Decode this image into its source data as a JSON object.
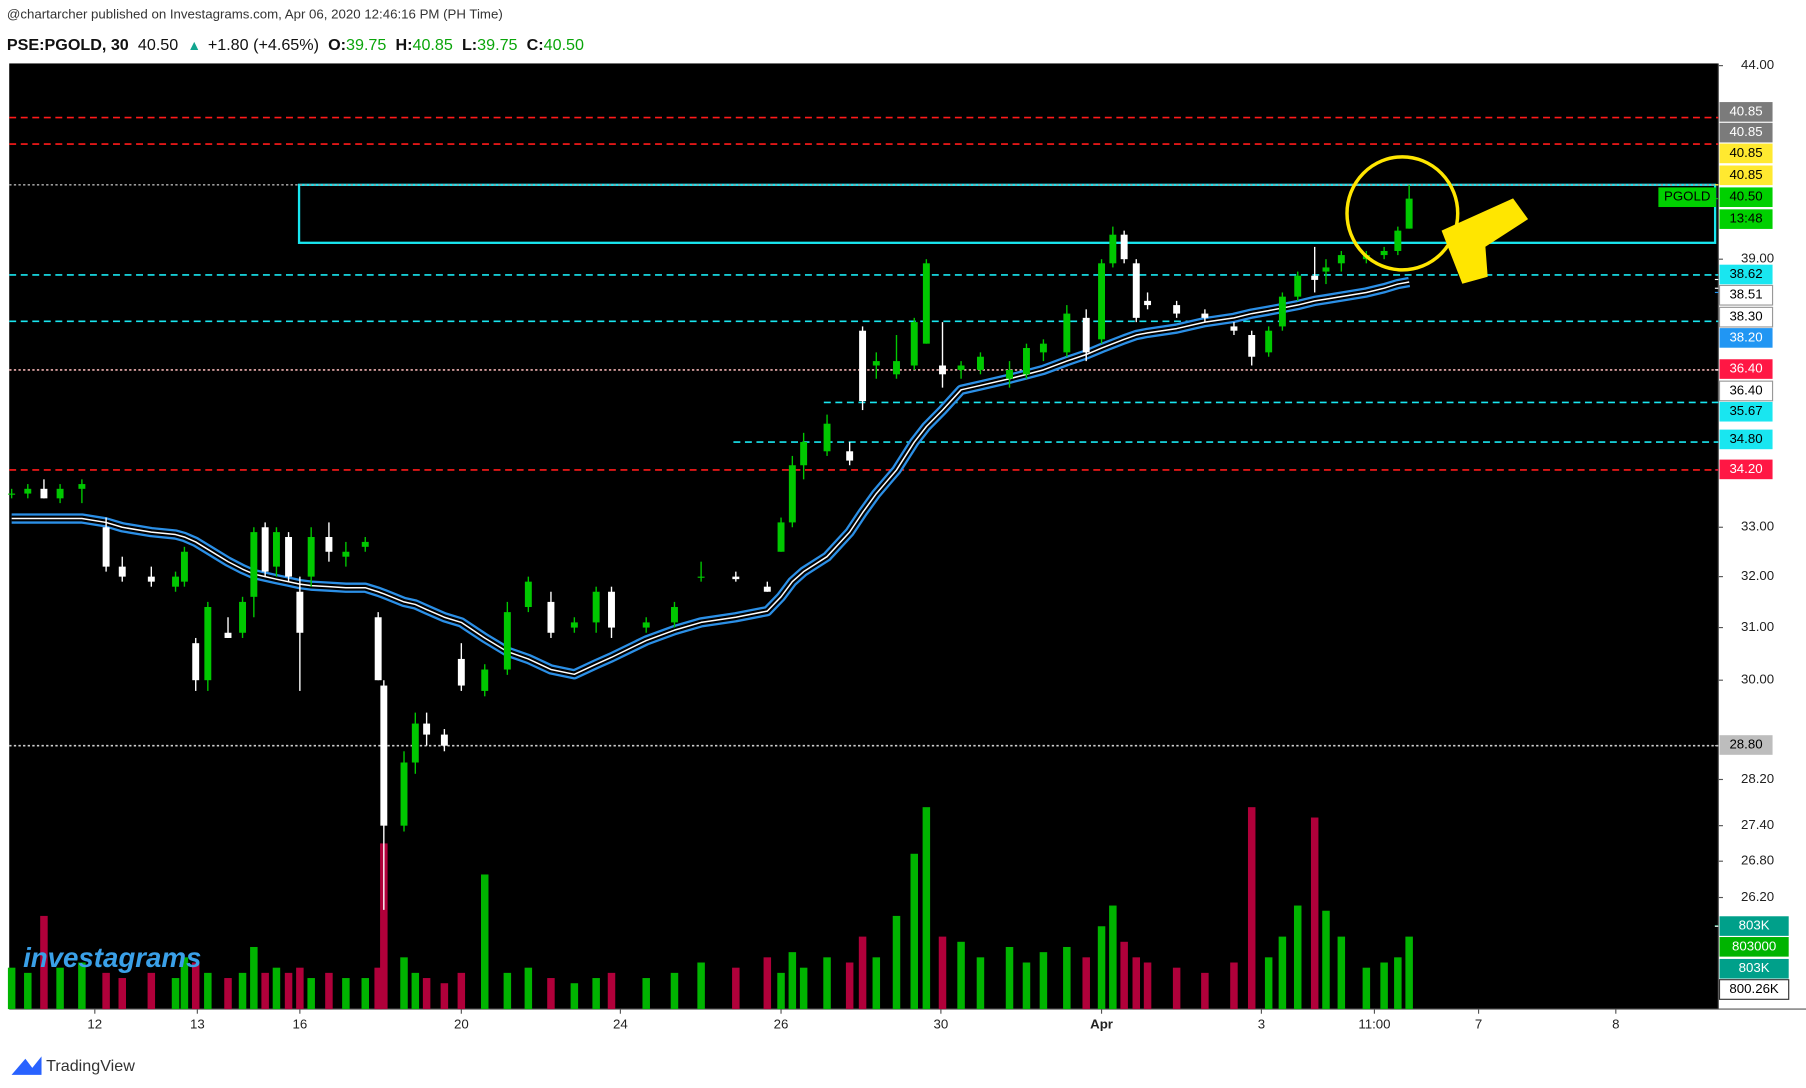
{
  "header": {
    "published": "@chartarcher published on Investagrams.com, Apr 06, 2020 12:46:16 PM (PH Time)",
    "symbol": "PSE:PGOLD, 30",
    "last": "40.50",
    "arrow": "▲",
    "change": "+1.80 (+4.65%)",
    "open_label": "O:",
    "open": "39.75",
    "high_label": "H:",
    "high": "40.85",
    "low_label": "L:",
    "low": "39.75",
    "close_label": "C:",
    "close": "40.50"
  },
  "chart_data": {
    "type": "candlestick",
    "x": [
      0.3,
      2.3,
      4.3,
      6.3,
      9,
      12,
      14,
      17.6,
      20.6,
      21.7,
      23.1,
      24.6,
      27.1,
      28.9,
      30.3,
      31.7,
      33.1,
      34.6,
      36,
      37.4,
      39.6,
      41.7,
      44.1,
      45.7,
      46.4,
      48.9,
      50.3,
      51.7,
      53.9,
      56,
      58.9,
      61.7,
      64.3,
      67.1,
      70,
      72.7,
      74.6,
      78.9,
      82.4,
      85.7,
      90,
      93.9,
      95.6,
      97,
      98.4,
      101.3,
      104.1,
      105.7,
      107.4,
      109.9,
      112.1,
      113.6,
      115.6,
      117.9,
      120.3,
      123.9,
      126,
      128.1,
      131,
      133.4,
      135.3,
      136.7,
      138.1,
      139.6,
      141,
      144.6,
      148.1,
      151.7,
      153.9,
      156,
      157.7,
      159.6,
      161.7,
      163.1,
      165,
      168.1,
      170.3,
      172,
      173.4
    ],
    "open": [
      33.7,
      33.7,
      33.8,
      33.6,
      33.8,
      33.0,
      32.2,
      32.0,
      31.8,
      31.9,
      30.7,
      30.0,
      30.9,
      30.9,
      31.6,
      33.0,
      32.2,
      32.8,
      31.7,
      32.0,
      32.8,
      32.4,
      32.6,
      31.2,
      29.9,
      27.4,
      28.5,
      29.2,
      29.0,
      30.4,
      29.8,
      30.2,
      31.4,
      31.5,
      31.0,
      31.1,
      31.7,
      31.0,
      31.1,
      32.0,
      32.0,
      31.8,
      32.5,
      33.1,
      34.3,
      34.6,
      34.6,
      37.3,
      36.5,
      36.3,
      36.5,
      37.0,
      36.5,
      36.4,
      36.4,
      36.2,
      36.3,
      36.8,
      36.8,
      37.6,
      37.1,
      38.9,
      39.6,
      38.9,
      38.0,
      37.9,
      37.7,
      37.4,
      37.2,
      36.8,
      37.4,
      38.1,
      38.6,
      38.7,
      38.9,
      39.0,
      39.1,
      39.2,
      39.75
    ],
    "high": [
      33.8,
      33.9,
      34.0,
      33.9,
      34.0,
      33.2,
      32.4,
      32.2,
      32.1,
      32.6,
      30.8,
      31.5,
      31.2,
      31.6,
      33.0,
      33.1,
      33.0,
      32.9,
      32.0,
      33.0,
      33.1,
      32.7,
      32.8,
      31.3,
      30.0,
      28.7,
      29.4,
      29.4,
      29.1,
      30.7,
      30.3,
      31.5,
      32.0,
      31.7,
      31.2,
      31.8,
      31.8,
      31.2,
      31.5,
      32.3,
      32.1,
      31.9,
      33.2,
      34.5,
      35.0,
      35.4,
      34.8,
      37.4,
      36.8,
      37.2,
      37.6,
      39.0,
      37.5,
      36.6,
      36.8,
      36.6,
      37.0,
      37.1,
      37.9,
      37.8,
      39.0,
      39.8,
      39.7,
      39.0,
      38.2,
      38.0,
      37.8,
      37.5,
      37.3,
      37.4,
      38.2,
      38.7,
      39.3,
      39.0,
      39.2,
      39.2,
      39.3,
      39.8,
      40.85
    ],
    "low": [
      33.6,
      33.6,
      33.6,
      33.5,
      33.5,
      32.1,
      31.9,
      31.8,
      31.7,
      31.8,
      29.8,
      29.8,
      30.8,
      30.8,
      31.2,
      32.0,
      32.0,
      31.9,
      29.8,
      31.8,
      32.3,
      32.2,
      32.5,
      30.0,
      26.0,
      27.3,
      28.3,
      28.8,
      28.7,
      29.8,
      29.7,
      30.1,
      31.3,
      30.8,
      30.9,
      30.9,
      30.8,
      30.9,
      31.0,
      31.9,
      31.9,
      31.7,
      32.5,
      33.0,
      34.0,
      34.5,
      34.3,
      35.5,
      36.2,
      36.2,
      36.4,
      37.0,
      36.0,
      36.2,
      36.3,
      36.0,
      36.2,
      36.6,
      36.7,
      36.6,
      37.0,
      38.8,
      38.9,
      37.5,
      37.8,
      37.6,
      37.5,
      37.2,
      36.5,
      36.7,
      37.3,
      38.0,
      38.2,
      38.4,
      38.7,
      38.9,
      39.0,
      39.1,
      39.75
    ],
    "close": [
      33.7,
      33.8,
      33.6,
      33.8,
      33.9,
      32.2,
      32.0,
      31.9,
      32.0,
      32.5,
      30.0,
      31.4,
      30.8,
      31.5,
      32.9,
      32.1,
      32.9,
      32.0,
      30.9,
      32.8,
      32.5,
      32.5,
      32.7,
      30.0,
      27.4,
      28.5,
      29.2,
      29.0,
      28.8,
      29.9,
      30.2,
      31.3,
      31.9,
      30.9,
      31.1,
      31.7,
      31.0,
      31.1,
      31.4,
      32.0,
      31.95,
      31.7,
      33.1,
      34.3,
      34.8,
      35.2,
      34.4,
      35.7,
      36.6,
      36.6,
      37.5,
      38.9,
      36.3,
      36.5,
      36.7,
      36.4,
      36.9,
      37.0,
      37.7,
      36.8,
      38.9,
      39.6,
      39.0,
      37.6,
      37.9,
      37.7,
      37.6,
      37.3,
      36.7,
      37.3,
      38.1,
      38.6,
      38.5,
      38.8,
      39.1,
      39.1,
      39.2,
      39.7,
      40.5
    ],
    "volume": [
      400000,
      350000,
      900000,
      400000,
      450000,
      350000,
      300000,
      350000,
      300000,
      500000,
      450000,
      350000,
      300000,
      350000,
      600000,
      350000,
      400000,
      350000,
      400000,
      300000,
      350000,
      300000,
      300000,
      400000,
      1600000,
      500000,
      350000,
      300000,
      250000,
      350000,
      1300000,
      350000,
      400000,
      300000,
      250000,
      300000,
      350000,
      300000,
      350000,
      450000,
      400000,
      500000,
      350000,
      550000,
      400000,
      500000,
      450000,
      700000,
      500000,
      900000,
      1500000,
      1950000,
      700000,
      650000,
      500000,
      600000,
      450000,
      550000,
      600000,
      500000,
      800000,
      1000000,
      650000,
      500000,
      450000,
      400000,
      350000,
      450000,
      1950000,
      500000,
      700000,
      1000000,
      1850000,
      950000,
      700000,
      400000,
      450000,
      500000,
      700000
    ],
    "ema": [
      33.18,
      33.18,
      33.18,
      33.18,
      33.18,
      33.1,
      33.0,
      32.9,
      32.85,
      32.8,
      32.7,
      32.55,
      32.3,
      32.15,
      32.05,
      32.0,
      31.95,
      31.9,
      31.85,
      31.82,
      31.8,
      31.78,
      31.78,
      31.7,
      31.66,
      31.5,
      31.45,
      31.35,
      31.2,
      31.1,
      30.8,
      30.54,
      30.4,
      30.2,
      30.11,
      30.3,
      30.43,
      30.75,
      30.95,
      31.1,
      31.2,
      31.32,
      31.6,
      31.9,
      32.1,
      32.4,
      32.9,
      33.3,
      33.7,
      34.2,
      34.8,
      35.14,
      35.5,
      35.95,
      36.05,
      36.2,
      36.3,
      36.4,
      36.6,
      36.75,
      36.9,
      37.0,
      37.1,
      37.2,
      37.25,
      37.35,
      37.5,
      37.6,
      37.7,
      37.77,
      37.83,
      37.9,
      38.0,
      38.04,
      38.1,
      38.2,
      38.3,
      38.4,
      38.45
    ],
    "up_color": "#00c800",
    "down_color": "#ffffff",
    "volume_up_color": "#00b400",
    "volume_down_color": "#b0003a",
    "ema_color": "#2b8fe6",
    "xlim": [
      0,
      211.7
    ],
    "ylim": [
      24.44,
      44.06
    ],
    "log_scale": true,
    "y2lim": [
      0,
      2450000
    ],
    "xticks": [
      {
        "value": 10.6,
        "label": "12"
      },
      {
        "value": 23.3,
        "label": "13"
      },
      {
        "value": 36,
        "label": "16"
      },
      {
        "value": 56,
        "label": "20"
      },
      {
        "value": 75.7,
        "label": "24"
      },
      {
        "value": 95.6,
        "label": "26"
      },
      {
        "value": 115.4,
        "label": "30"
      },
      {
        "value": 135.3,
        "label": "Apr"
      },
      {
        "value": 155.1,
        "label": "3"
      },
      {
        "value": 169.1,
        "label": "11:00"
      },
      {
        "value": 182,
        "label": "7"
      },
      {
        "value": 199,
        "label": "8"
      }
    ],
    "yticks": [
      {
        "value": 44,
        "label": "44.00"
      },
      {
        "value": 39,
        "label": "39.00"
      },
      {
        "value": 33,
        "label": "33.00"
      },
      {
        "value": 32,
        "label": "32.00"
      },
      {
        "value": 31,
        "label": "31.00"
      },
      {
        "value": 30,
        "label": "30.00"
      },
      {
        "value": 28.2,
        "label": "28.20"
      },
      {
        "value": 27.4,
        "label": "27.40"
      },
      {
        "value": 26.8,
        "label": "26.80"
      },
      {
        "value": 26.2,
        "label": "26.20"
      }
    ],
    "levels": [
      {
        "value": 42.6,
        "start": 0,
        "color": "#ff1a1a",
        "dash": "6 4"
      },
      {
        "value": 41.9,
        "start": 0,
        "color": "#ff1a1a",
        "dash": "6 4"
      },
      {
        "value": 40.85,
        "start": 0,
        "color": "#9a9a9a",
        "dash": "2 2"
      },
      {
        "value": 38.62,
        "start": 0,
        "color": "#19e6f0",
        "dash": "6 4"
      },
      {
        "value": 37.52,
        "start": 0,
        "color": "#19e6f0",
        "dash": "6 4"
      },
      {
        "value": 36.4,
        "start": 0,
        "color": "#f0b0b0",
        "dash": "2 2"
      },
      {
        "value": 35.67,
        "start": 100.9,
        "color": "#19e6f0",
        "dash": "6 4"
      },
      {
        "value": 34.8,
        "start": 89.7,
        "color": "#19e6f0",
        "dash": "6 4"
      },
      {
        "value": 34.2,
        "start": 0,
        "color": "#ff1a1a",
        "dash": "6 4"
      },
      {
        "value": 28.8,
        "start": 0,
        "color": "#cfcfcf",
        "dash": "2 2"
      }
    ],
    "zone": {
      "top": 40.85,
      "bottom": 39.4,
      "start": 35.9,
      "end": 211.3,
      "color": "#19e6f0"
    },
    "symbol_tag": "PGOLD",
    "price_labels": [
      {
        "value": 40.85,
        "label": "40.85",
        "color": "#7b7b7b"
      },
      {
        "value": 40.85,
        "label": "40.85",
        "color": "#7b7b7b"
      },
      {
        "value": 40.85,
        "label": "40.85",
        "color": "#ffe930"
      },
      {
        "value": 40.85,
        "label": "40.85",
        "color": "#ffe930"
      },
      {
        "value": 40.5,
        "label": "40.50",
        "color": "#00d000"
      },
      {
        "label": "13:48",
        "color": "#00d000"
      },
      {
        "value": 38.62,
        "label": "38.62",
        "color": "#19e6f0"
      },
      {
        "value": 38.51,
        "label": "38.51",
        "color": "#ffffff"
      },
      {
        "value": 38.3,
        "label": "38.30",
        "color": "#ffffff"
      },
      {
        "value": 38.2,
        "label": "38.20",
        "color": "#2196f3"
      },
      {
        "value": 36.4,
        "label": "36.40",
        "color": "#ff1744"
      },
      {
        "value": 36.4,
        "label": "36.40",
        "color": "#ffffff"
      },
      {
        "value": 35.67,
        "label": "35.67",
        "color": "#19e6f0"
      },
      {
        "value": 34.8,
        "label": "34.80",
        "color": "#19e6f0"
      },
      {
        "value": 34.2,
        "label": "34.20",
        "color": "#ff1744"
      },
      {
        "value": 28.8,
        "label": "28.80",
        "color": "#bdbdbd"
      }
    ],
    "volume_labels": [
      {
        "value": 803000,
        "label": "803K",
        "color": "#00a08a"
      },
      {
        "value": 803000,
        "label": "803000",
        "color": "#00b400"
      },
      {
        "value": 803000,
        "label": "803K",
        "color": "#00a08a"
      },
      {
        "value": 800260,
        "label": "800.26K",
        "color": "#ffffff"
      }
    ]
  },
  "watermark": "investagrams",
  "footer": "TradingView"
}
